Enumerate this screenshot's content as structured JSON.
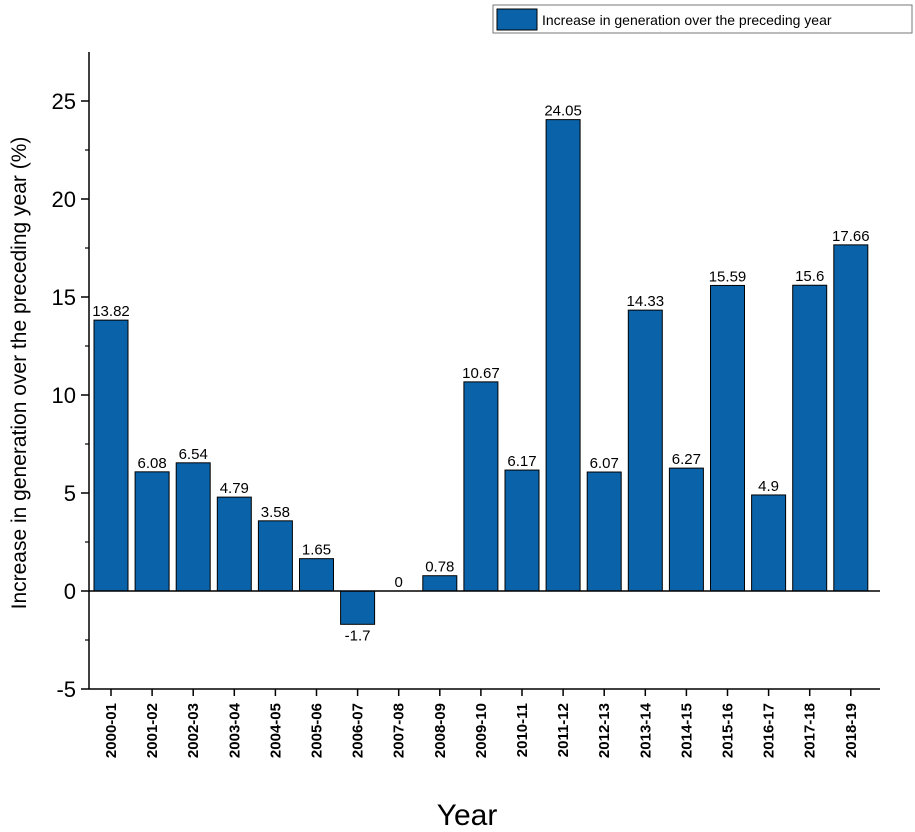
{
  "chart_data": {
    "type": "bar",
    "categories": [
      "2000-01",
      "2001-02",
      "2002-03",
      "2003-04",
      "2004-05",
      "2005-06",
      "2006-07",
      "2007-08",
      "2008-09",
      "2009-10",
      "2010-11",
      "2011-12",
      "2012-13",
      "2013-14",
      "2014-15",
      "2015-16",
      "2016-17",
      "2017-18",
      "2018-19"
    ],
    "values": [
      13.82,
      6.08,
      6.54,
      4.79,
      3.58,
      1.65,
      -1.7,
      0,
      0.78,
      10.67,
      6.17,
      24.05,
      6.07,
      14.33,
      6.27,
      15.59,
      4.9,
      15.6,
      17.66
    ],
    "data_labels": [
      "13.82",
      "6.08",
      "6.54",
      "4.79",
      "3.58",
      "1.65",
      "-1.7",
      "0",
      "0.78",
      "10.67",
      "6.17",
      "24.05",
      "6.07",
      "14.33",
      "6.27",
      "15.59",
      "4.9",
      "15.6",
      "17.66"
    ],
    "series_name": "Increase in generation over the preceding year",
    "xlabel": "Year",
    "ylabel": "Increase in generation over the preceding year (%)",
    "ylim": [
      -5,
      27.5
    ],
    "yticks": [
      -5,
      0,
      5,
      10,
      15,
      20,
      25
    ],
    "ytick_labels": [
      "-5",
      "0",
      "5",
      "10",
      "15",
      "20",
      "25"
    ],
    "legend_position": "top-right",
    "grid": false,
    "bar_color": "#0a62a9",
    "bar_edge_color": "#000000"
  }
}
